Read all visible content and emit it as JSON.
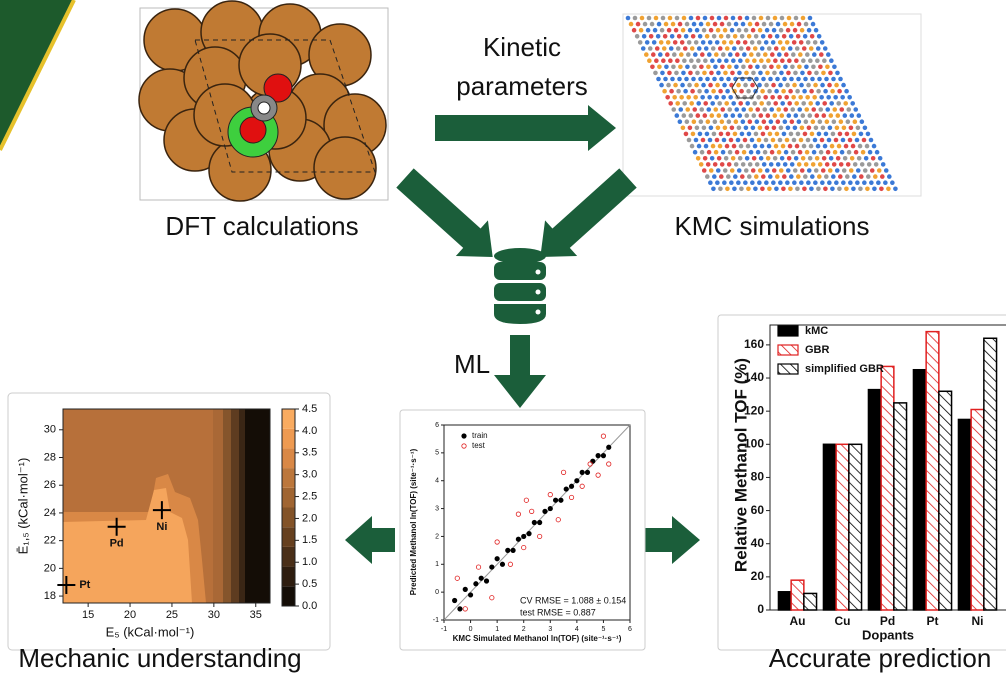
{
  "labels": {
    "dft": "DFT calculations",
    "kinetic": [
      "Kinetic",
      "parameters"
    ],
    "kmc": "KMC simulations",
    "ml": "ML",
    "mechanic": "Mechanic understanding",
    "accurate": "Accurate prediction"
  },
  "contour_plot": {
    "type": "contour",
    "x_label": "E₅  (kCal·mol⁻¹)",
    "y_label": "Ē₁,₅  (kCal·mol⁻¹)",
    "xlim": [
      12.0,
      36.7
    ],
    "xticks": [
      15,
      20,
      25,
      30,
      35
    ],
    "ylim": [
      17.5,
      31.5
    ],
    "yticks": [
      18,
      20,
      22,
      24,
      26,
      28,
      30
    ],
    "colorbar_lim": [
      0,
      4.5
    ],
    "colorbar_ticks": [
      {
        "value": 0,
        "label": "0.0"
      },
      {
        "value": 0.5,
        "label": "0.5"
      },
      {
        "value": 1,
        "label": "1.0"
      },
      {
        "value": 1.5,
        "label": "1.5"
      },
      {
        "value": 2,
        "label": "2.0"
      },
      {
        "value": 2.5,
        "label": "2.5"
      },
      {
        "value": 3,
        "label": "3.0"
      },
      {
        "value": 3.5,
        "label": "3.5"
      },
      {
        "value": 4,
        "label": "4.0"
      },
      {
        "value": 4.5,
        "label": "4.5"
      }
    ],
    "markers": [
      {
        "label": "Pd",
        "x": 18.4,
        "y": 23.0
      },
      {
        "label": "Ni",
        "x": 23.8,
        "y": 24.2
      },
      {
        "label": "Pt",
        "x": 12.4,
        "y": 18.8
      }
    ]
  },
  "scatter_plot": {
    "type": "scatter",
    "x_label": "KMC Simulated Methanol ln(TOF) (site⁻¹·s⁻¹)",
    "y_label": "Predicted Methanol ln(TOF) (site⁻¹·s⁻¹)",
    "xlim": [
      -1,
      6
    ],
    "xticks": [
      -1,
      0,
      1,
      2,
      3,
      4,
      5,
      6
    ],
    "ylim": [
      -1,
      6
    ],
    "yticks": [
      -1,
      0,
      1,
      2,
      3,
      4,
      5,
      6
    ],
    "annotations": [
      "CV RMSE = 1.088 ± 0.154",
      "test RMSE = 0.887"
    ],
    "series": [
      {
        "name": "train",
        "color": "#000000",
        "x": [
          -0.6,
          -0.4,
          -0.2,
          0,
          0.2,
          0.4,
          0.6,
          0.8,
          1.0,
          1.2,
          1.4,
          1.6,
          1.8,
          2.0,
          2.2,
          2.4,
          2.6,
          2.8,
          3.0,
          3.2,
          3.4,
          3.6,
          3.8,
          4.0,
          4.2,
          4.4,
          4.6,
          4.8,
          5.0,
          5.2
        ],
        "y": [
          -0.3,
          -0.6,
          0.1,
          -0.1,
          0.3,
          0.5,
          0.4,
          0.9,
          1.2,
          1.0,
          1.5,
          1.5,
          1.9,
          2.0,
          2.1,
          2.5,
          2.5,
          2.9,
          3.0,
          3.3,
          3.3,
          3.7,
          3.8,
          4.0,
          4.3,
          4.3,
          4.7,
          4.9,
          4.9,
          5.2
        ]
      },
      {
        "name": "test",
        "color": "#e02020",
        "x": [
          -0.5,
          -0.2,
          0.3,
          0.8,
          1.0,
          1.5,
          1.8,
          2.0,
          2.3,
          2.6,
          3.0,
          3.3,
          3.5,
          3.8,
          4.2,
          4.5,
          4.8,
          5.0,
          5.2,
          2.1
        ],
        "y": [
          0.5,
          -0.6,
          0.9,
          -0.2,
          1.8,
          1.0,
          2.8,
          1.6,
          2.9,
          2.0,
          3.5,
          2.6,
          4.3,
          3.4,
          3.8,
          4.6,
          4.2,
          5.6,
          4.6,
          3.3
        ]
      }
    ]
  },
  "bar_chart": {
    "type": "bar",
    "x_label": "Dopants",
    "y_label": "Relative Methanol TOF (%)",
    "categories": [
      "Au",
      "Cu",
      "Pd",
      "Pt",
      "Ni"
    ],
    "ylim": [
      0,
      172
    ],
    "yticks": [
      0,
      20,
      40,
      60,
      80,
      100,
      120,
      140,
      160
    ],
    "series": [
      {
        "name": "kMC",
        "color": "#000000",
        "hatch": false,
        "values": [
          11,
          100,
          133,
          145,
          115
        ]
      },
      {
        "name": "GBR",
        "color": "#e02020",
        "hatch": true,
        "values": [
          18,
          100,
          147,
          168,
          121
        ]
      },
      {
        "name": "simplified GBR",
        "color": "#000000",
        "hatch": true,
        "values": [
          10,
          100,
          125,
          132,
          164
        ]
      }
    ]
  }
}
